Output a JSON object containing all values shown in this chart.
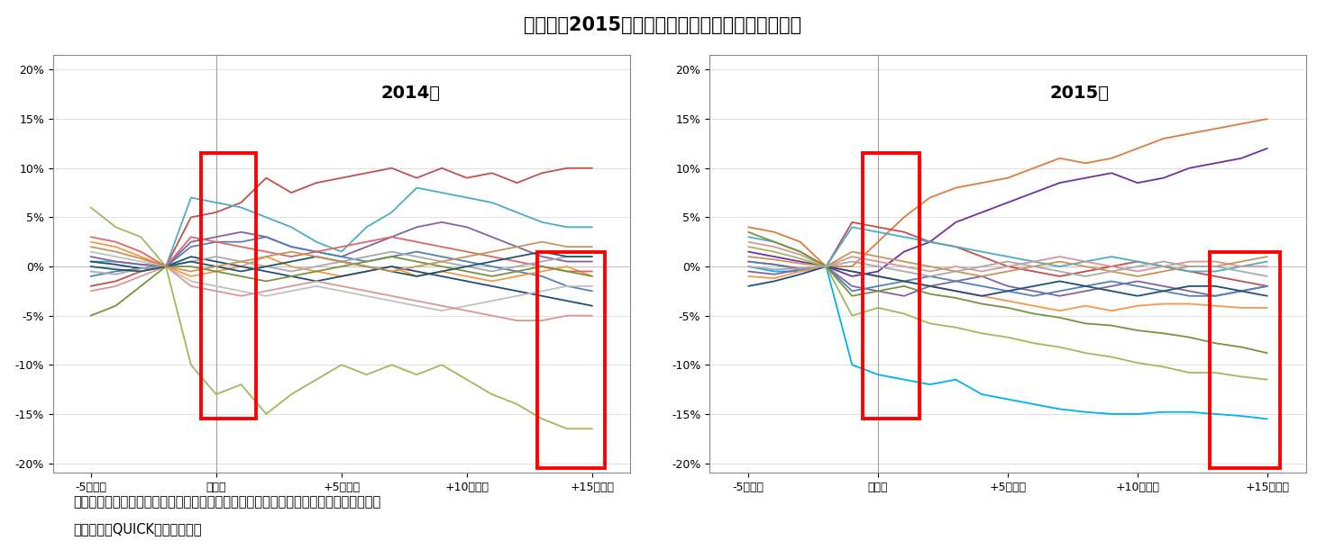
{
  "title": "『図３』2015年は株価が下落するケースが増えた",
  "title_bold_prefix": "『図３』",
  "title_normal_suffix": "2015年は株価が下落するケースが増えた",
  "subtitle_2014": "2014年",
  "subtitle_2015": "2015年",
  "x_labels": [
    "-5営業日",
    "決議日",
    "+5営業日",
    "+10営業日",
    "+15営業日"
  ],
  "x_ticks": [
    -5,
    0,
    5,
    10,
    15
  ],
  "ylim": [
    -0.21,
    0.215
  ],
  "yticks": [
    -0.2,
    -0.15,
    -0.1,
    -0.05,
    0.0,
    0.05,
    0.1,
    0.15,
    0.2
  ],
  "note1": "（注）　決議日を基準として各企業の株価騰落率を東証業種別株価指数の騰落率と比較",
  "note2": "（資料）　QUICKより筆者作成",
  "series_2014": [
    {
      "color": "#C0504D",
      "data": [
        -0.02,
        -0.015,
        -0.005,
        0.0,
        0.05,
        0.055,
        0.065,
        0.09,
        0.075,
        0.085,
        0.09,
        0.095,
        0.1,
        0.09,
        0.1,
        0.09,
        0.095,
        0.085,
        0.095,
        0.1,
        0.1
      ]
    },
    {
      "color": "#9BBB59",
      "data": [
        0.06,
        0.04,
        0.03,
        0.0,
        -0.1,
        -0.13,
        -0.12,
        -0.15,
        -0.13,
        -0.115,
        -0.1,
        -0.11,
        -0.1,
        -0.11,
        -0.1,
        -0.115,
        -0.13,
        -0.14,
        -0.155,
        -0.165,
        -0.165
      ]
    },
    {
      "color": "#4BACC6",
      "data": [
        0.005,
        0.005,
        0.002,
        0.0,
        0.07,
        0.065,
        0.06,
        0.05,
        0.04,
        0.025,
        0.015,
        0.04,
        0.055,
        0.08,
        0.075,
        0.07,
        0.065,
        0.055,
        0.045,
        0.04,
        0.04
      ]
    },
    {
      "color": "#8064A2",
      "data": [
        0.01,
        0.005,
        0.002,
        0.0,
        0.025,
        0.03,
        0.035,
        0.03,
        0.02,
        0.015,
        0.01,
        0.02,
        0.03,
        0.04,
        0.045,
        0.04,
        0.03,
        0.02,
        0.01,
        0.005,
        0.005
      ]
    },
    {
      "color": "#4F81BD",
      "data": [
        -0.01,
        -0.005,
        -0.002,
        0.0,
        0.02,
        0.025,
        0.025,
        0.03,
        0.02,
        0.015,
        0.01,
        0.005,
        0.01,
        0.015,
        0.01,
        0.005,
        0.0,
        -0.005,
        -0.01,
        -0.02,
        -0.025
      ]
    },
    {
      "color": "#F79646",
      "data": [
        0.025,
        0.02,
        0.01,
        0.0,
        -0.01,
        -0.005,
        0.0,
        0.01,
        0.0,
        -0.005,
        -0.01,
        -0.005,
        0.0,
        -0.01,
        -0.005,
        -0.01,
        -0.015,
        -0.01,
        -0.005,
        0.0,
        -0.01
      ]
    },
    {
      "color": "#1F4E79",
      "data": [
        0.005,
        0.002,
        -0.002,
        0.0,
        0.01,
        0.005,
        0.0,
        -0.005,
        -0.01,
        -0.015,
        -0.01,
        -0.005,
        0.0,
        -0.005,
        -0.01,
        -0.015,
        -0.02,
        -0.025,
        -0.03,
        -0.035,
        -0.04
      ]
    },
    {
      "color": "#E06666",
      "data": [
        0.03,
        0.025,
        0.015,
        0.0,
        0.03,
        0.025,
        0.02,
        0.015,
        0.01,
        0.015,
        0.02,
        0.025,
        0.03,
        0.025,
        0.02,
        0.015,
        0.01,
        0.005,
        0.0,
        -0.005,
        -0.005
      ]
    },
    {
      "color": "#A9A9A9",
      "data": [
        -0.005,
        -0.008,
        -0.002,
        0.0,
        0.005,
        0.01,
        0.005,
        0.0,
        -0.005,
        0.0,
        0.005,
        0.01,
        0.015,
        0.01,
        0.005,
        0.0,
        -0.005,
        0.0,
        0.005,
        0.01,
        0.01
      ]
    },
    {
      "color": "#C0C0C0",
      "data": [
        0.015,
        0.01,
        0.005,
        0.0,
        -0.015,
        -0.02,
        -0.025,
        -0.03,
        -0.025,
        -0.02,
        -0.025,
        -0.03,
        -0.035,
        -0.04,
        -0.045,
        -0.04,
        -0.035,
        -0.03,
        -0.025,
        -0.02,
        -0.02
      ]
    },
    {
      "color": "#D99694",
      "data": [
        -0.025,
        -0.02,
        -0.01,
        0.0,
        -0.02,
        -0.025,
        -0.03,
        -0.025,
        -0.02,
        -0.015,
        -0.02,
        -0.025,
        -0.03,
        -0.035,
        -0.04,
        -0.045,
        -0.05,
        -0.055,
        -0.055,
        -0.05,
        -0.05
      ]
    },
    {
      "color": "#76933C",
      "data": [
        -0.05,
        -0.04,
        -0.02,
        0.0,
        0.0,
        -0.005,
        -0.01,
        -0.015,
        -0.01,
        -0.005,
        0.0,
        0.005,
        0.01,
        0.005,
        0.0,
        -0.005,
        -0.01,
        -0.005,
        0.0,
        -0.005,
        -0.01
      ]
    },
    {
      "color": "#215868",
      "data": [
        0.0,
        -0.003,
        -0.005,
        0.0,
        0.005,
        0.0,
        -0.005,
        0.0,
        0.005,
        0.01,
        0.005,
        0.0,
        -0.005,
        -0.01,
        -0.005,
        0.0,
        0.005,
        0.01,
        0.015,
        0.01,
        0.01
      ]
    },
    {
      "color": "#C4955A",
      "data": [
        0.02,
        0.015,
        0.008,
        0.0,
        -0.005,
        0.0,
        0.005,
        0.01,
        0.015,
        0.01,
        0.005,
        0.0,
        -0.005,
        0.0,
        0.005,
        0.01,
        0.015,
        0.02,
        0.025,
        0.02,
        0.02
      ]
    }
  ],
  "series_2015": [
    {
      "color": "#E07B39",
      "data": [
        0.04,
        0.035,
        0.025,
        0.0,
        0.0,
        0.025,
        0.05,
        0.07,
        0.08,
        0.085,
        0.09,
        0.1,
        0.11,
        0.105,
        0.11,
        0.12,
        0.13,
        0.135,
        0.14,
        0.145,
        0.15
      ]
    },
    {
      "color": "#7030A0",
      "data": [
        0.015,
        0.01,
        0.005,
        0.0,
        -0.01,
        -0.005,
        0.015,
        0.025,
        0.045,
        0.055,
        0.065,
        0.075,
        0.085,
        0.09,
        0.095,
        0.085,
        0.09,
        0.1,
        0.105,
        0.11,
        0.12
      ]
    },
    {
      "color": "#00B0F0",
      "data": [
        0.0,
        -0.005,
        -0.005,
        0.0,
        -0.1,
        -0.11,
        -0.115,
        -0.12,
        -0.115,
        -0.13,
        -0.135,
        -0.14,
        -0.145,
        -0.148,
        -0.15,
        -0.15,
        -0.148,
        -0.148,
        -0.15,
        -0.152,
        -0.155
      ]
    },
    {
      "color": "#9BBB59",
      "data": [
        0.02,
        0.015,
        0.008,
        0.0,
        -0.05,
        -0.042,
        -0.048,
        -0.058,
        -0.062,
        -0.068,
        -0.072,
        -0.078,
        -0.082,
        -0.088,
        -0.092,
        -0.098,
        -0.102,
        -0.108,
        -0.108,
        -0.112,
        -0.115
      ]
    },
    {
      "color": "#C0504D",
      "data": [
        0.005,
        0.002,
        -0.002,
        0.0,
        0.045,
        0.04,
        0.035,
        0.025,
        0.02,
        0.01,
        0.0,
        -0.005,
        -0.01,
        -0.005,
        0.0,
        0.005,
        0.0,
        -0.005,
        -0.01,
        -0.015,
        -0.02
      ]
    },
    {
      "color": "#4BACC6",
      "data": [
        0.03,
        0.025,
        0.015,
        0.0,
        0.04,
        0.035,
        0.03,
        0.025,
        0.02,
        0.015,
        0.01,
        0.005,
        0.0,
        0.005,
        0.01,
        0.005,
        0.0,
        -0.005,
        -0.005,
        0.0,
        0.005
      ]
    },
    {
      "color": "#8064A2",
      "data": [
        -0.005,
        -0.008,
        -0.003,
        0.0,
        -0.02,
        -0.025,
        -0.03,
        -0.02,
        -0.015,
        -0.01,
        -0.02,
        -0.025,
        -0.03,
        -0.025,
        -0.02,
        -0.015,
        -0.02,
        -0.025,
        -0.03,
        -0.025,
        -0.02
      ]
    },
    {
      "color": "#4F81BD",
      "data": [
        0.005,
        0.002,
        -0.003,
        0.0,
        -0.025,
        -0.02,
        -0.015,
        -0.01,
        -0.015,
        -0.02,
        -0.025,
        -0.03,
        -0.025,
        -0.02,
        -0.015,
        -0.02,
        -0.025,
        -0.03,
        -0.03,
        -0.025,
        -0.02
      ]
    },
    {
      "color": "#F79646",
      "data": [
        -0.01,
        -0.012,
        -0.005,
        0.0,
        -0.005,
        -0.01,
        -0.015,
        -0.02,
        -0.025,
        -0.03,
        -0.035,
        -0.04,
        -0.045,
        -0.04,
        -0.045,
        -0.04,
        -0.038,
        -0.038,
        -0.04,
        -0.042,
        -0.042
      ]
    },
    {
      "color": "#D99694",
      "data": [
        0.025,
        0.02,
        0.012,
        0.0,
        0.01,
        0.005,
        0.0,
        -0.005,
        0.0,
        -0.005,
        0.0,
        0.005,
        0.01,
        0.005,
        0.0,
        -0.005,
        0.0,
        0.005,
        0.005,
        0.0,
        0.0
      ]
    },
    {
      "color": "#1F4E79",
      "data": [
        -0.02,
        -0.015,
        -0.008,
        0.0,
        -0.005,
        -0.01,
        -0.015,
        -0.02,
        -0.025,
        -0.03,
        -0.025,
        -0.02,
        -0.015,
        -0.02,
        -0.025,
        -0.03,
        -0.025,
        -0.02,
        -0.02,
        -0.025,
        -0.03
      ]
    },
    {
      "color": "#76933C",
      "data": [
        0.035,
        0.025,
        0.015,
        0.0,
        -0.03,
        -0.025,
        -0.02,
        -0.028,
        -0.032,
        -0.038,
        -0.042,
        -0.048,
        -0.052,
        -0.058,
        -0.06,
        -0.065,
        -0.068,
        -0.072,
        -0.078,
        -0.082,
        -0.088
      ]
    },
    {
      "color": "#C4955A",
      "data": [
        0.01,
        0.007,
        0.003,
        0.0,
        0.015,
        0.01,
        0.005,
        0.0,
        -0.005,
        -0.01,
        -0.005,
        0.0,
        0.005,
        0.0,
        -0.005,
        -0.01,
        -0.005,
        0.0,
        0.0,
        0.005,
        0.01
      ]
    },
    {
      "color": "#A9A9A9",
      "data": [
        0.0,
        -0.003,
        -0.002,
        0.0,
        0.005,
        0.0,
        -0.005,
        -0.01,
        -0.005,
        0.0,
        0.005,
        0.0,
        -0.005,
        -0.01,
        -0.005,
        0.0,
        0.005,
        0.0,
        0.0,
        -0.005,
        -0.01
      ]
    }
  ]
}
